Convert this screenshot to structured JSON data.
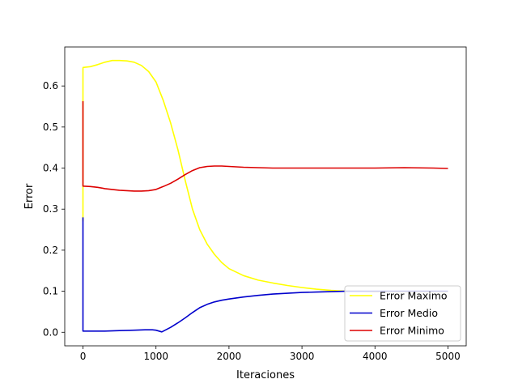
{
  "chart_data": {
    "type": "line",
    "title": "",
    "xlabel": "Iteraciones",
    "ylabel": "Error",
    "xlim": [
      -250,
      5250
    ],
    "ylim": [
      -0.033,
      0.695
    ],
    "xticks": [
      0,
      1000,
      2000,
      3000,
      4000,
      5000
    ],
    "xtick_labels": [
      "0",
      "1000",
      "2000",
      "3000",
      "4000",
      "5000"
    ],
    "yticks": [
      0.0,
      0.1,
      0.2,
      0.3,
      0.4,
      0.5,
      0.6
    ],
    "ytick_labels": [
      "0.0",
      "0.1",
      "0.2",
      "0.3",
      "0.4",
      "0.5",
      "0.6"
    ],
    "grid": false,
    "legend_position": "lower right",
    "series": [
      {
        "name": "Error Maximo",
        "color": "#ffff00",
        "x": [
          0,
          0,
          1,
          100,
          200,
          300,
          400,
          500,
          600,
          700,
          800,
          900,
          1000,
          1100,
          1200,
          1300,
          1400,
          1500,
          1600,
          1700,
          1800,
          1900,
          2000,
          2200,
          2400,
          2600,
          2800,
          3000,
          3200,
          3400,
          3600,
          3800,
          4000,
          4500,
          5000
        ],
        "y": [
          0.27,
          0.64,
          0.645,
          0.647,
          0.652,
          0.658,
          0.662,
          0.662,
          0.661,
          0.658,
          0.65,
          0.635,
          0.61,
          0.565,
          0.51,
          0.445,
          0.37,
          0.3,
          0.25,
          0.215,
          0.19,
          0.17,
          0.155,
          0.138,
          0.127,
          0.12,
          0.114,
          0.109,
          0.105,
          0.102,
          0.1,
          0.1,
          0.099,
          0.099,
          0.099
        ]
      },
      {
        "name": "Error Medio",
        "color": "#0000cc",
        "x": [
          0,
          0,
          1,
          100,
          300,
          500,
          700,
          850,
          950,
          1000,
          1080,
          1200,
          1300,
          1400,
          1500,
          1600,
          1700,
          1800,
          1900,
          2000,
          2200,
          2400,
          2600,
          2800,
          3000,
          3200,
          3400,
          3600,
          3800,
          4000,
          4500,
          5000
        ],
        "y": [
          0.28,
          0.003,
          0.003,
          0.003,
          0.003,
          0.004,
          0.005,
          0.006,
          0.006,
          0.005,
          0.001,
          0.012,
          0.023,
          0.035,
          0.048,
          0.06,
          0.068,
          0.074,
          0.078,
          0.081,
          0.086,
          0.09,
          0.093,
          0.095,
          0.097,
          0.098,
          0.099,
          0.1,
          0.1,
          0.1,
          0.1,
          0.1
        ]
      },
      {
        "name": "Error Minimo",
        "color": "#dd0000",
        "x": [
          0,
          0,
          1,
          100,
          200,
          300,
          400,
          500,
          600,
          700,
          800,
          900,
          1000,
          1100,
          1200,
          1300,
          1400,
          1500,
          1600,
          1700,
          1800,
          1900,
          2000,
          2200,
          2400,
          2600,
          2800,
          3000,
          3500,
          4000,
          4400,
          4800,
          5000
        ],
        "y": [
          0.563,
          0.357,
          0.356,
          0.355,
          0.353,
          0.35,
          0.348,
          0.346,
          0.345,
          0.344,
          0.344,
          0.345,
          0.348,
          0.355,
          0.363,
          0.373,
          0.384,
          0.394,
          0.401,
          0.404,
          0.405,
          0.405,
          0.404,
          0.402,
          0.401,
          0.4,
          0.4,
          0.4,
          0.4,
          0.4,
          0.401,
          0.4,
          0.399
        ]
      }
    ]
  }
}
